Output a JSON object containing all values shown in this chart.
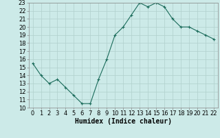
{
  "x": [
    0,
    1,
    2,
    3,
    4,
    5,
    6,
    7,
    8,
    9,
    10,
    11,
    12,
    13,
    14,
    15,
    16,
    17,
    18,
    19,
    20,
    21,
    22
  ],
  "y": [
    15.5,
    14.0,
    13.0,
    13.5,
    12.5,
    11.5,
    10.5,
    10.5,
    13.5,
    16.0,
    19.0,
    20.0,
    21.5,
    23.0,
    22.5,
    23.0,
    22.5,
    21.0,
    20.0,
    20.0,
    19.5,
    19.0,
    18.5
  ],
  "xlabel": "Humidex (Indice chaleur)",
  "ylim": [
    10,
    23
  ],
  "xlim": [
    -0.5,
    22.5
  ],
  "yticks": [
    10,
    11,
    12,
    13,
    14,
    15,
    16,
    17,
    18,
    19,
    20,
    21,
    22,
    23
  ],
  "xticks": [
    0,
    1,
    2,
    3,
    4,
    5,
    6,
    7,
    8,
    9,
    10,
    11,
    12,
    13,
    14,
    15,
    16,
    17,
    18,
    19,
    20,
    21,
    22
  ],
  "line_color": "#1a6b5a",
  "marker": "+",
  "bg_color": "#cceae8",
  "grid_color": "#b0d0cc",
  "tick_fontsize": 6,
  "xlabel_fontsize": 7
}
